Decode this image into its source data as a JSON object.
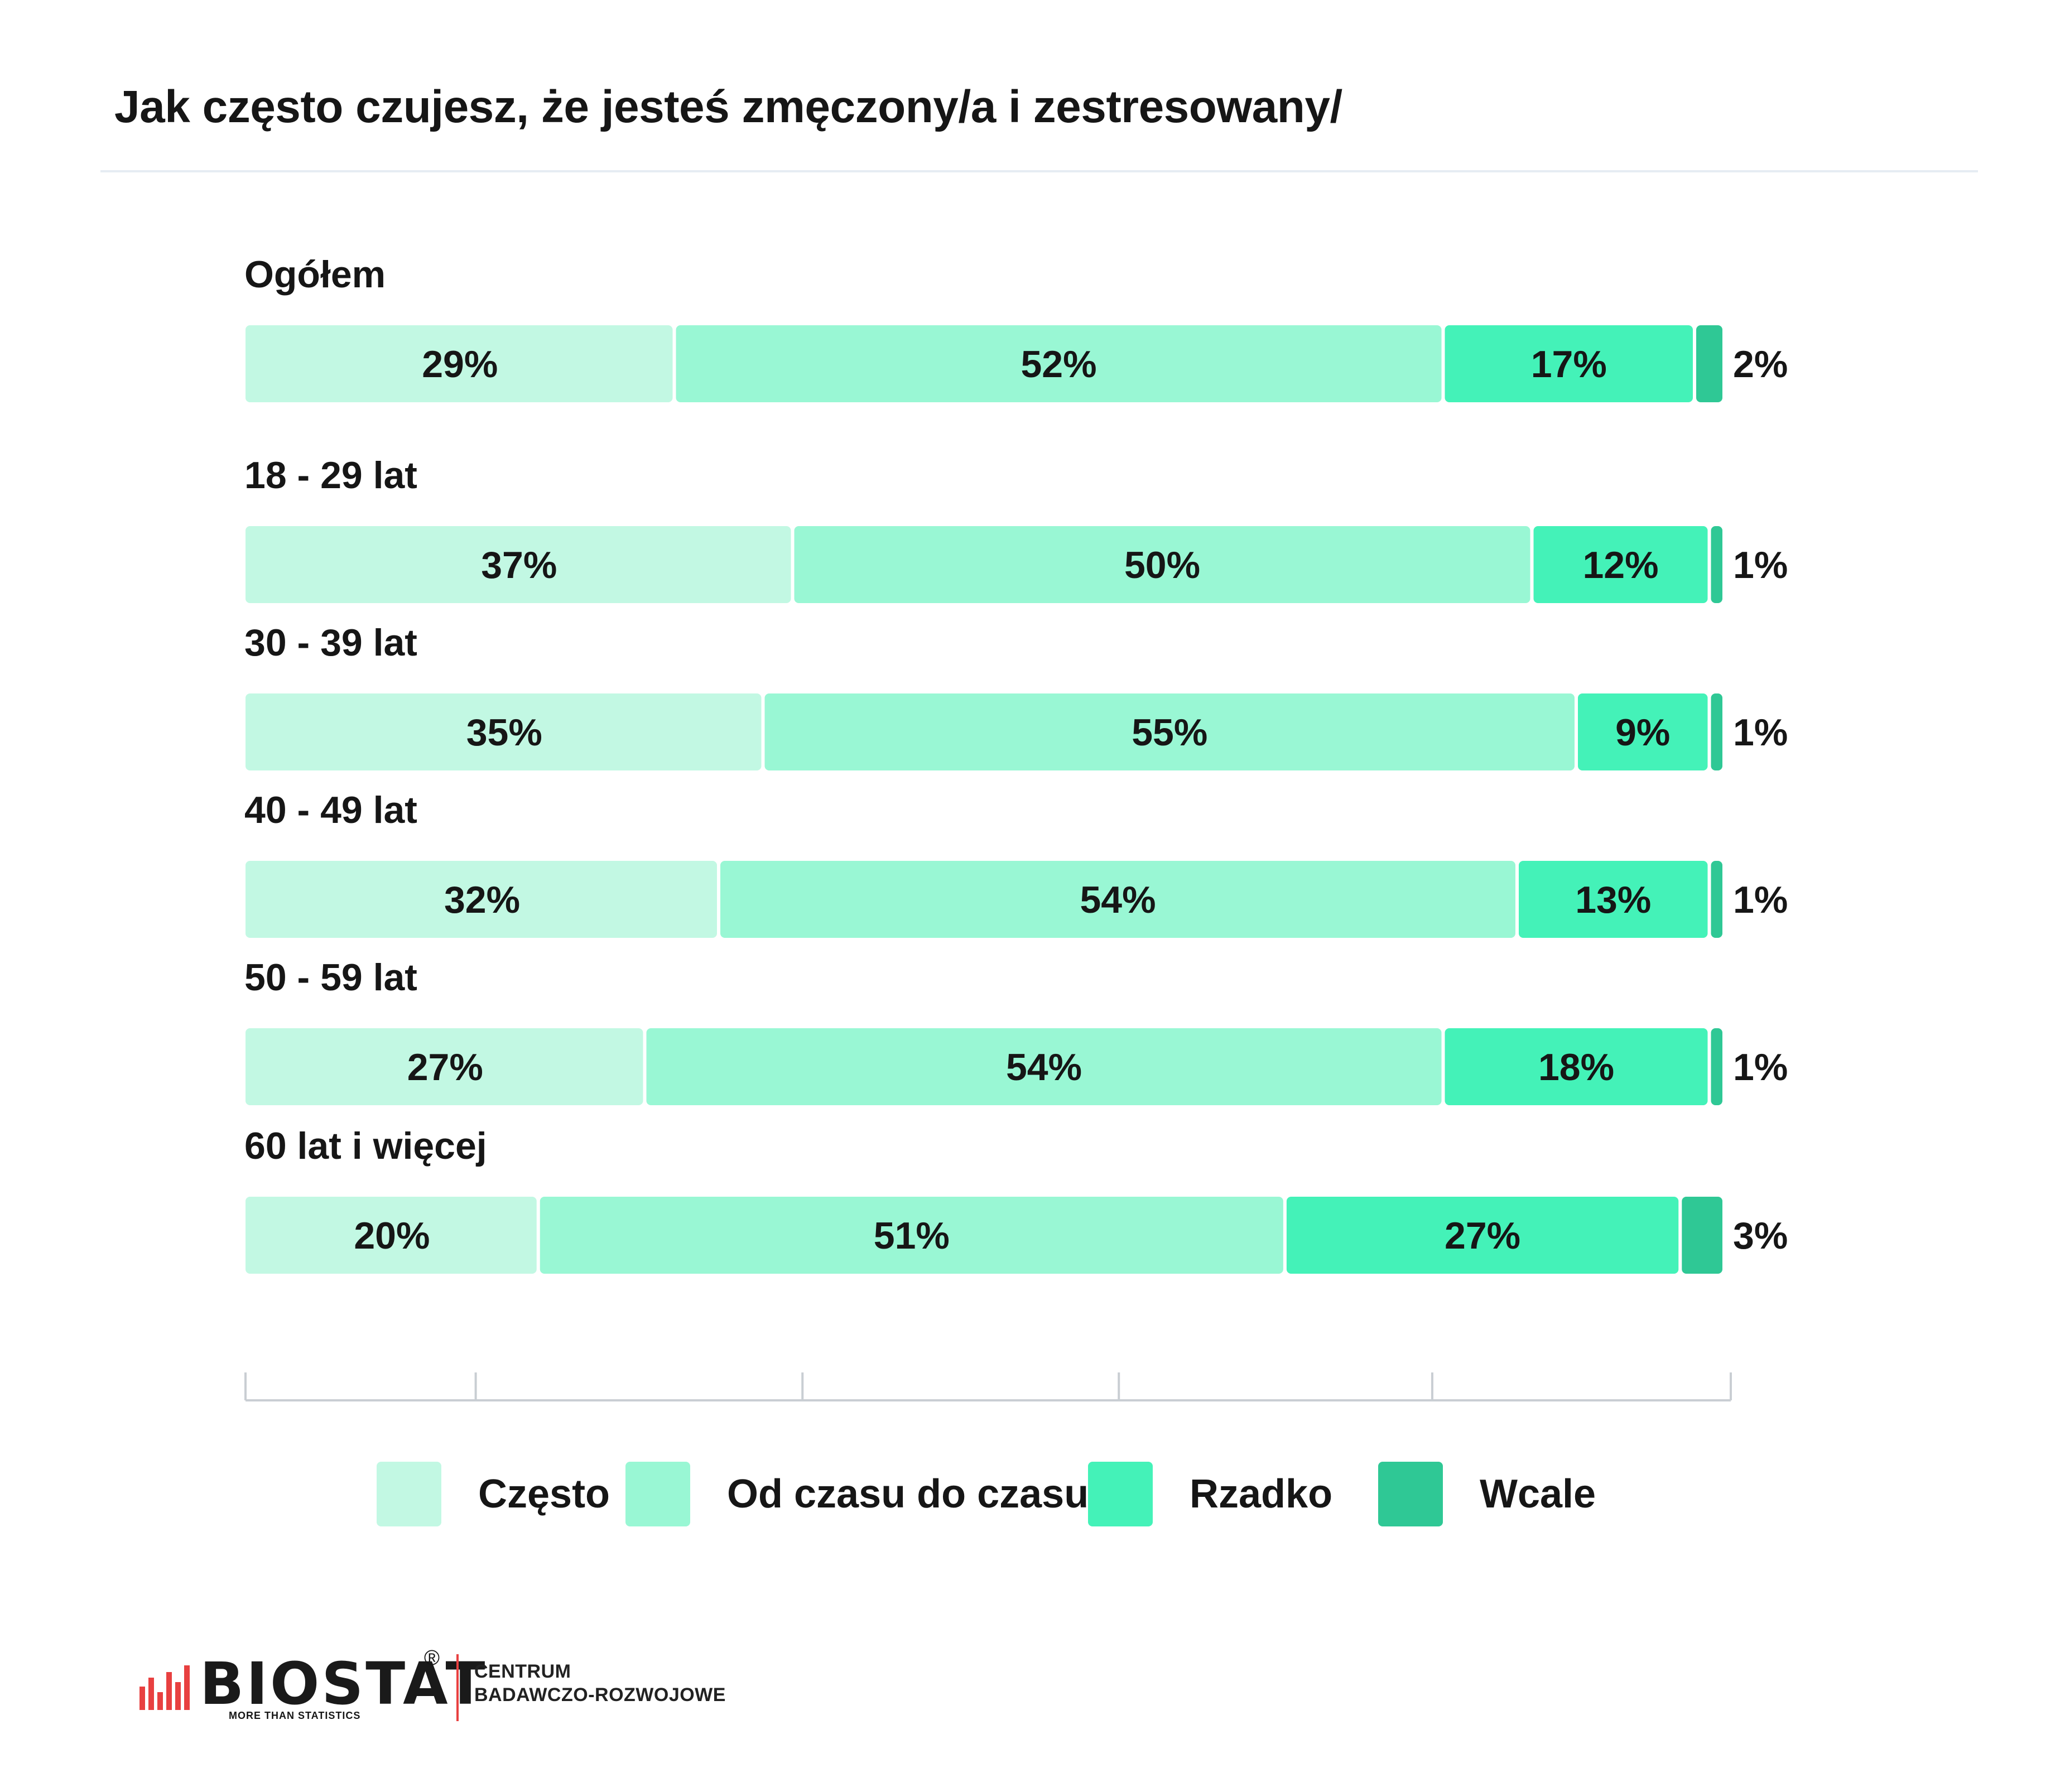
{
  "title": "Jak często czujesz, że jesteś zmęczony/a i zestresowany/",
  "colors": {
    "czesto": "#c2f8e3",
    "od_czasu": "#99f7d4",
    "rzadko": "#44f2b8",
    "wcale": "#2fc895",
    "axis": "#c9ced3"
  },
  "chart_data": {
    "type": "bar",
    "orientation": "horizontal",
    "stacked": true,
    "normalized": true,
    "categories": [
      "Ogółem",
      "18 - 29 lat",
      "30 - 39 lat",
      "40 - 49 lat",
      "50 - 59 lat",
      "60 lat i więcej"
    ],
    "series": [
      {
        "name": "Często",
        "values": [
          29,
          37,
          35,
          32,
          27,
          20
        ]
      },
      {
        "name": "Od czasu do czasu",
        "values": [
          52,
          50,
          55,
          54,
          54,
          51
        ]
      },
      {
        "name": "Rzadko",
        "values": [
          17,
          12,
          9,
          13,
          18,
          27
        ]
      },
      {
        "name": "Wcale",
        "values": [
          2,
          1,
          1,
          1,
          1,
          3
        ]
      }
    ],
    "value_labels": [
      [
        "29%",
        "52%",
        "17%",
        "2%"
      ],
      [
        "37%",
        "50%",
        "12%",
        "1%"
      ],
      [
        "35%",
        "55%",
        "9%",
        "1%"
      ],
      [
        "32%",
        "54%",
        "13%",
        "1%"
      ],
      [
        "27%",
        "54%",
        "18%",
        "1%"
      ],
      [
        "20%",
        "51%",
        "27%",
        "3%"
      ]
    ],
    "legend_position": "bottom",
    "grid": false
  },
  "logo": {
    "name": "BIOSTAT",
    "registered": "®",
    "tagline": "MORE THAN STATISTICS",
    "sub_line1": "CENTRUM",
    "sub_line2": "BADAWCZO-ROZWOJOWE"
  }
}
